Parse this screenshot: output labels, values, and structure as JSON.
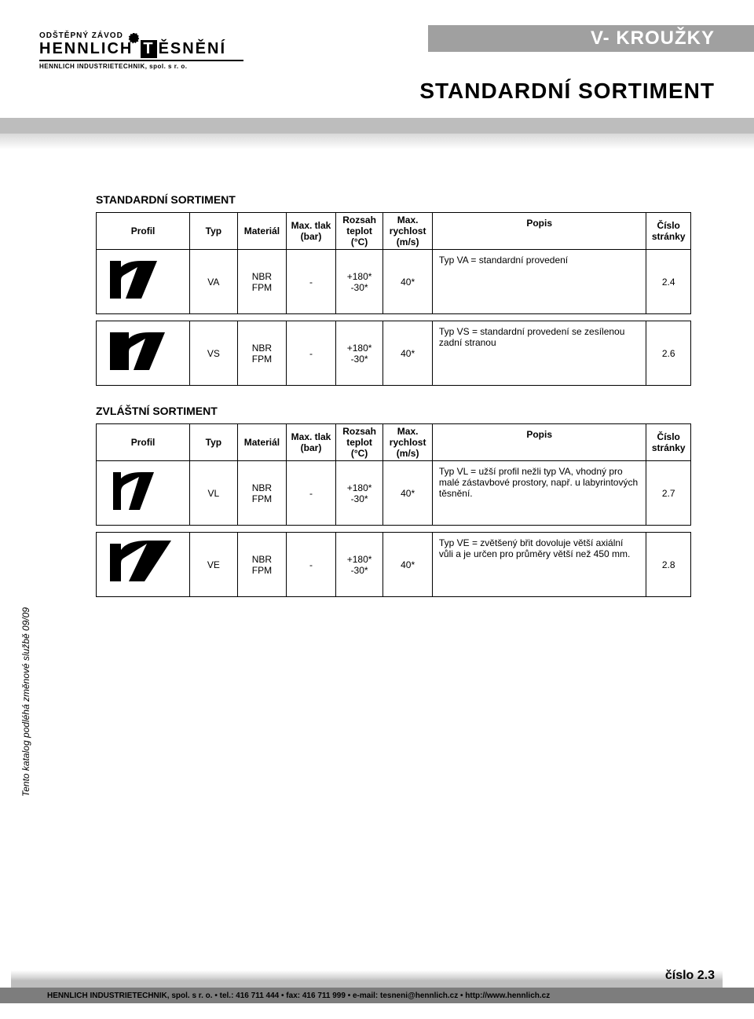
{
  "header": {
    "category": "V- KROUŽKY",
    "subtitle": "STANDARDNÍ SORTIMENT"
  },
  "logo": {
    "top": "ODŠTĚPNÝ ZÁVOD",
    "main_left": "HENNLICH",
    "main_t": "T",
    "main_right": "ĚSNĚNÍ",
    "sub": "HENNLICH INDUSTRIETECHNIK, spol. s r. o."
  },
  "sections": {
    "standard_title": "STANDARDNÍ SORTIMENT",
    "special_title": "ZVLÁŠTNÍ SORTIMENT"
  },
  "headers": {
    "profil": "Profil",
    "typ": "Typ",
    "material": "Materiál",
    "max_tlak": "Max. tlak\n(bar)",
    "rozsah_teplot": "Rozsah\nteplot\n(°C)",
    "max_rychlost": "Max.\nrychlost\n(m/s)",
    "popis": "Popis",
    "cislo": "Číslo\nstránky"
  },
  "rows": {
    "va": {
      "typ": "VA",
      "material": "NBR\nFPM",
      "tlak": "-",
      "teplot": "+180*\n-30*",
      "rychlost": "40*",
      "popis": "Typ VA = standardní provedení",
      "cislo": "2.4"
    },
    "vs": {
      "typ": "VS",
      "material": "NBR\nFPM",
      "tlak": "-",
      "teplot": "+180*\n-30*",
      "rychlost": "40*",
      "popis": "Typ VS = standardní provedení se zesílenou zadní stranou",
      "cislo": "2.6"
    },
    "vl": {
      "typ": "VL",
      "material": "NBR\nFPM",
      "tlak": "-",
      "teplot": "+180*\n-30*",
      "rychlost": "40*",
      "popis": "Typ VL = užší profil nežli typ VA, vhodný pro malé zástavbové prostory, např. u labyrintových těsnění.",
      "cislo": "2.7"
    },
    "ve": {
      "typ": "VE",
      "material": "NBR\nFPM",
      "tlak": "-",
      "teplot": "+180*\n-30*",
      "rychlost": "40*",
      "popis": "Typ VE = zvětšený břit dovoluje větší axiální vůli a je určen pro průměry větší než 450 mm.",
      "cislo": "2.8"
    }
  },
  "side_note": "Tento katalog podléhá změnové službě 09/09",
  "page_number": "číslo 2.3",
  "footer": "HENNLICH INDUSTRIETECHNIK, spol. s r. o. • tel.: 416 711 444 • fax: 416 711 999 • e-mail: tesneni@hennlich.cz • http://www.hennlich.cz"
}
